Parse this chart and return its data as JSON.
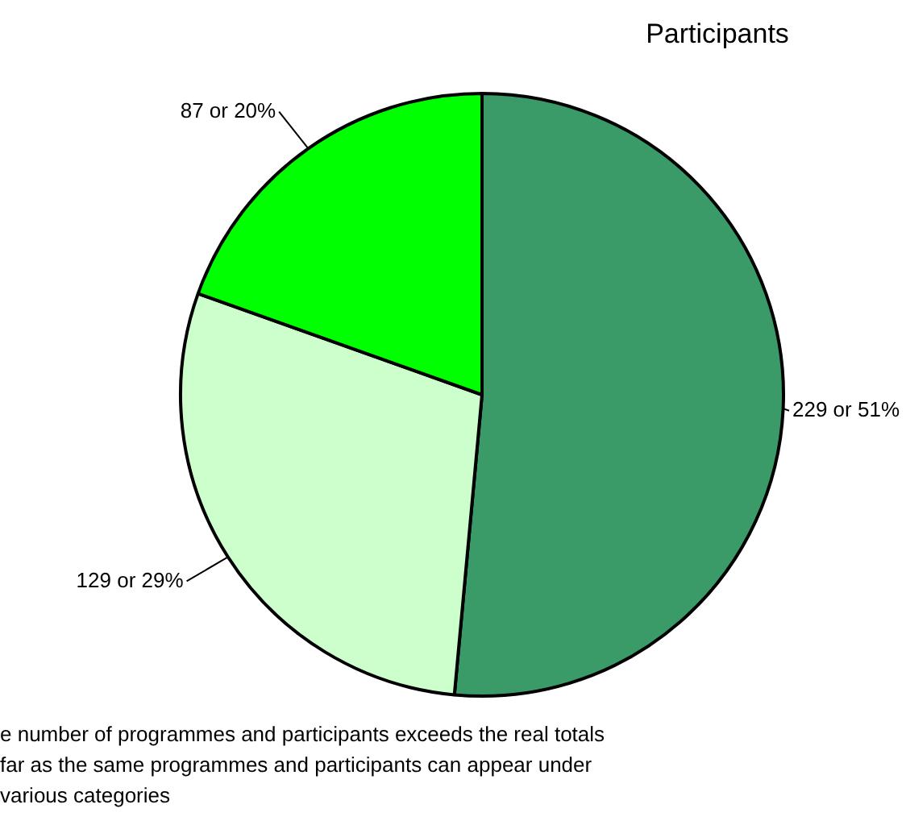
{
  "chart_data": {
    "type": "pie",
    "title": "Participants",
    "categories": [
      null,
      null,
      null
    ],
    "values": [
      229,
      129,
      87
    ],
    "colors": [
      "#3a9a68",
      "#ccffcc",
      "#00ff00"
    ],
    "value_labels": [
      "229 or 51%",
      "129 or 29%",
      "87 or 20%"
    ],
    "legend": false,
    "annotations": [
      "e number of programmes and participants exceeds the real totals",
      "far as the same programmes and participants can appear under",
      "various categories"
    ]
  }
}
